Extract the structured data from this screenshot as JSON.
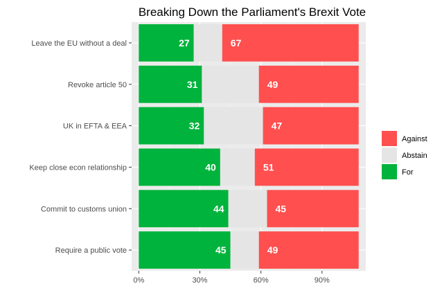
{
  "chart_data": {
    "type": "bar",
    "orientation": "horizontal",
    "stacked": true,
    "title": "Breaking Down the Parliament's Brexit Vote",
    "xlabel": "",
    "ylabel": "",
    "categories": [
      "Leave the EU without a deal",
      "Revoke article 50",
      "UK in EFTA & EEA",
      "Keep close econ relationship",
      "Commit to customs union",
      "Require a public vote"
    ],
    "x_ticks": [
      "0%",
      "30%",
      "60%",
      "90%"
    ],
    "x_tick_values": [
      0,
      30,
      60,
      90
    ],
    "xlim": [
      -3.5,
      111.5
    ],
    "series": [
      {
        "name": "For",
        "color": "#00b33c",
        "values": [
          27,
          31,
          32,
          40,
          44,
          45
        ]
      },
      {
        "name": "Abstain",
        "color": "#e5e5e5",
        "values": [
          14,
          28,
          29,
          17,
          19,
          14
        ]
      },
      {
        "name": "Against",
        "color": "#ff4f4f",
        "values": [
          67,
          49,
          47,
          51,
          45,
          49
        ]
      }
    ],
    "data_labels": [
      "For",
      "Against"
    ],
    "legend": {
      "position": "right",
      "entries": [
        "Against",
        "Abstain",
        "For"
      ]
    },
    "grid": true,
    "panel_background": "#ebebeb"
  }
}
